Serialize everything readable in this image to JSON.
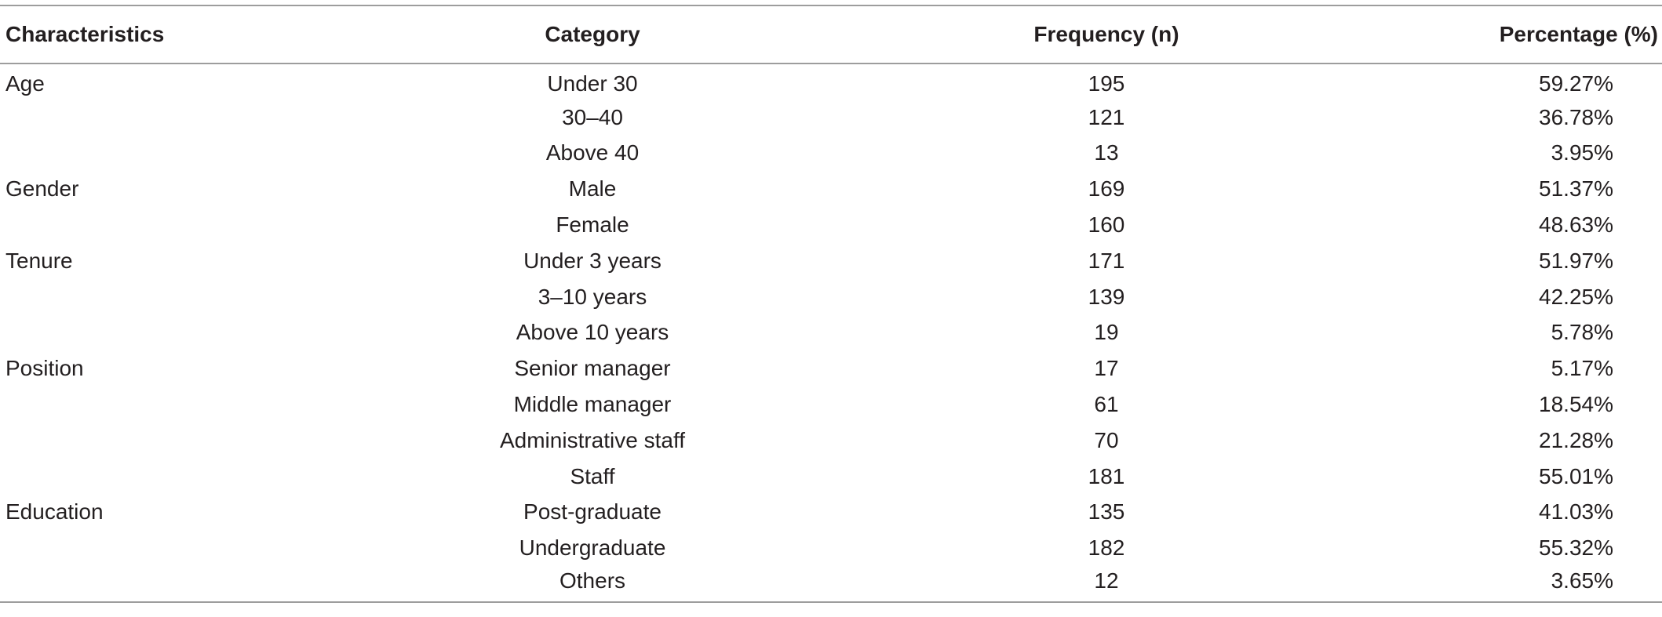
{
  "table": {
    "headers": {
      "characteristics": "Characteristics",
      "category": "Category",
      "frequency": "Frequency (n)",
      "percentage": "Percentage (%)"
    },
    "rows": [
      {
        "characteristic": "Age",
        "category": "Under 30",
        "frequency": "195",
        "percentage": "59.27%"
      },
      {
        "characteristic": "",
        "category": "30–40",
        "frequency": "121",
        "percentage": "36.78%"
      },
      {
        "characteristic": "",
        "category": "Above 40",
        "frequency": "13",
        "percentage": "3.95%"
      },
      {
        "characteristic": "Gender",
        "category": "Male",
        "frequency": "169",
        "percentage": "51.37%"
      },
      {
        "characteristic": "",
        "category": "Female",
        "frequency": "160",
        "percentage": "48.63%"
      },
      {
        "characteristic": "Tenure",
        "category": "Under 3 years",
        "frequency": "171",
        "percentage": "51.97%"
      },
      {
        "characteristic": "",
        "category": "3–10 years",
        "frequency": "139",
        "percentage": "42.25%"
      },
      {
        "characteristic": "",
        "category": "Above 10 years",
        "frequency": "19",
        "percentage": "5.78%"
      },
      {
        "characteristic": "Position",
        "category": "Senior manager",
        "frequency": "17",
        "percentage": "5.17%"
      },
      {
        "characteristic": "",
        "category": "Middle manager",
        "frequency": "61",
        "percentage": "18.54%"
      },
      {
        "characteristic": "",
        "category": "Administrative staff",
        "frequency": "70",
        "percentage": "21.28%"
      },
      {
        "characteristic": "",
        "category": "Staff",
        "frequency": "181",
        "percentage": "55.01%"
      },
      {
        "characteristic": "Education",
        "category": "Post-graduate",
        "frequency": "135",
        "percentage": "41.03%"
      },
      {
        "characteristic": "",
        "category": "Undergraduate",
        "frequency": "182",
        "percentage": "55.32%"
      },
      {
        "characteristic": "",
        "category": "Others",
        "frequency": "12",
        "percentage": "3.65%"
      }
    ]
  }
}
